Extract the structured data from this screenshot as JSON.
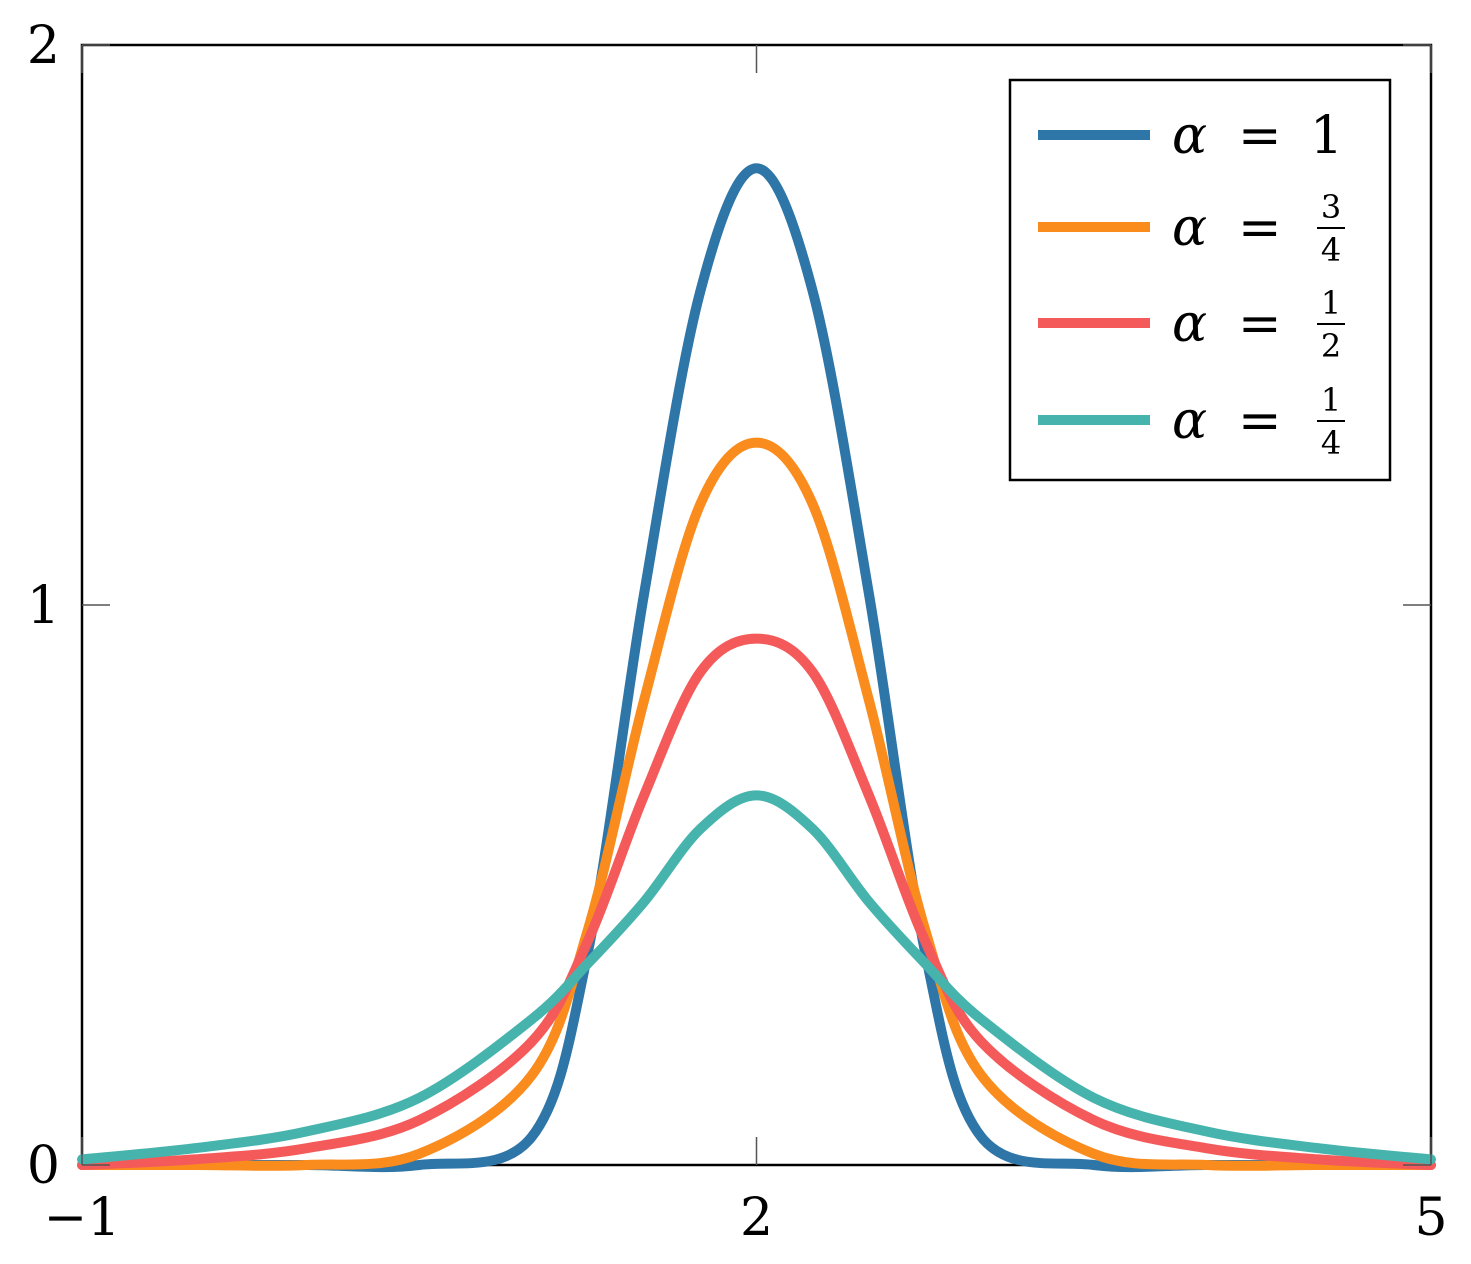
{
  "chart_data": {
    "type": "line",
    "xlim": [
      -1,
      5
    ],
    "ylim": [
      0,
      2
    ],
    "x_ticks": [
      "−1",
      "2",
      "5"
    ],
    "y_ticks": [
      "0",
      "1",
      "2"
    ],
    "grid": false,
    "legend_position": "top-right",
    "x": [
      -1.0,
      -0.5,
      0.0,
      0.5,
      1.0,
      1.25,
      1.5,
      1.75,
      2.0,
      2.25,
      2.5,
      2.75,
      3.0,
      3.5,
      4.0,
      4.5,
      5.0
    ],
    "series": [
      {
        "name": "α = 1",
        "legend_symbol": "α",
        "legend_value": "1",
        "color": "#2e75a8",
        "peak": 1.78,
        "values": [
          0.0,
          0.0,
          0.0,
          0.0,
          0.05,
          0.38,
          1.02,
          1.56,
          1.78,
          1.56,
          1.02,
          0.38,
          0.05,
          0.0,
          0.0,
          0.0,
          0.0
        ]
      },
      {
        "name": "α = 3/4",
        "legend_symbol": "α",
        "legend_numerator": "3",
        "legend_denominator": "4",
        "color": "#fa8c1e",
        "peak": 1.29,
        "values": [
          0.0,
          0.0,
          0.0,
          0.02,
          0.16,
          0.42,
          0.83,
          1.18,
          1.29,
          1.18,
          0.83,
          0.42,
          0.16,
          0.02,
          0.0,
          0.0,
          0.0
        ]
      },
      {
        "name": "α = 1/2",
        "legend_symbol": "α",
        "legend_numerator": "1",
        "legend_denominator": "2",
        "color": "#f55a5a",
        "peak": 0.94,
        "values": [
          0.0,
          0.01,
          0.03,
          0.08,
          0.22,
          0.4,
          0.66,
          0.88,
          0.94,
          0.88,
          0.66,
          0.4,
          0.22,
          0.08,
          0.03,
          0.01,
          0.0
        ]
      },
      {
        "name": "α = 1/4",
        "legend_symbol": "α",
        "legend_numerator": "1",
        "legend_denominator": "4",
        "color": "#46b4ad",
        "peak": 0.66,
        "values": [
          0.01,
          0.03,
          0.06,
          0.12,
          0.26,
          0.36,
          0.47,
          0.6,
          0.66,
          0.6,
          0.47,
          0.36,
          0.26,
          0.12,
          0.06,
          0.03,
          0.01
        ]
      }
    ]
  }
}
